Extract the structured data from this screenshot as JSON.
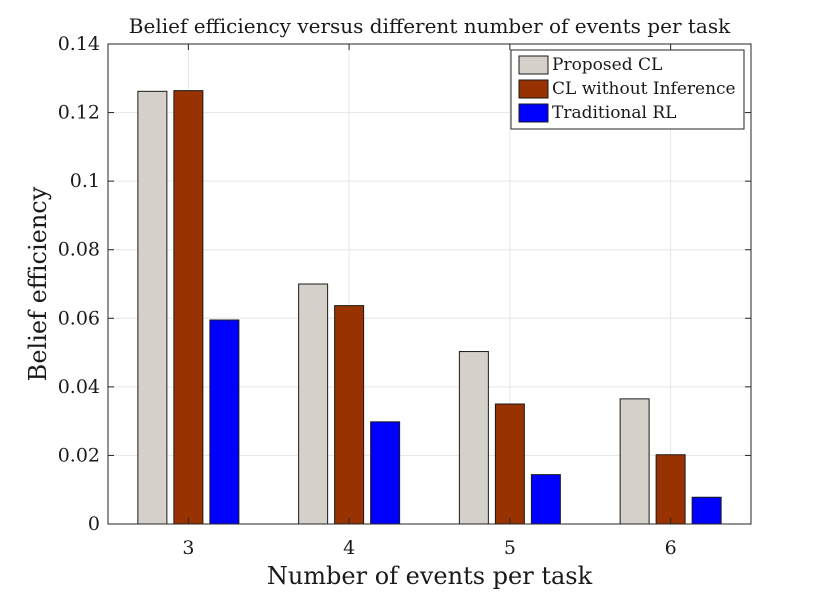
{
  "chart_data": {
    "type": "bar",
    "title": "Belief efficiency versus different number of events per task",
    "xlabel": "Number of events per task",
    "ylabel": "Belief efficiency",
    "categories": [
      "3",
      "4",
      "5",
      "6"
    ],
    "ylim": [
      0,
      0.14
    ],
    "yticks": [
      "0",
      "0.02",
      "0.04",
      "0.06",
      "0.08",
      "0.1",
      "0.12",
      "0.14"
    ],
    "grid": true,
    "legend_position": "top-right",
    "series": [
      {
        "name": "Proposed CL",
        "color": "#d5d0c9",
        "values": [
          0.1262,
          0.07,
          0.0503,
          0.0365
        ]
      },
      {
        "name": "CL without Inference",
        "color": "#983200",
        "values": [
          0.1264,
          0.0637,
          0.035,
          0.0202
        ]
      },
      {
        "name": "Traditional RL",
        "color": "#0000ff",
        "values": [
          0.0595,
          0.0298,
          0.0144,
          0.0078
        ]
      }
    ]
  }
}
